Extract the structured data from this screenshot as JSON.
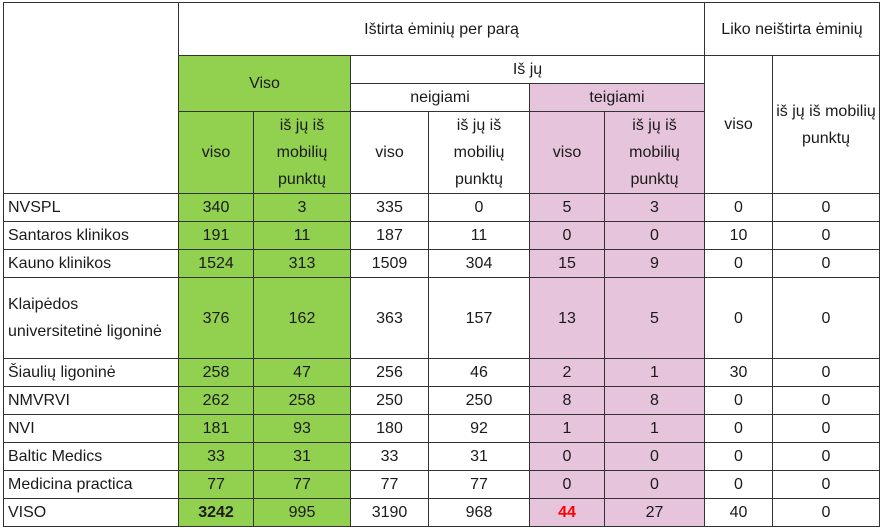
{
  "header": {
    "tested_per_day": "Ištirta ėminių per parą",
    "remaining_untested": "Liko neištirta ėminių",
    "total": "Viso",
    "of_which": "Iš jų",
    "negative": "neigiami",
    "positive": "teigiami",
    "sub_total": "viso",
    "sub_mobile": "iš jų iš mobilių punktų"
  },
  "rows": [
    {
      "name": "NVSPL",
      "cells": [
        "340",
        "3",
        "335",
        "0",
        "5",
        "3",
        "0",
        "0"
      ]
    },
    {
      "name": "Santaros klinikos",
      "cells": [
        "191",
        "11",
        "187",
        "11",
        "0",
        "0",
        "10",
        "0"
      ]
    },
    {
      "name": "Kauno klinikos",
      "cells": [
        "1524",
        "313",
        "1509",
        "304",
        "15",
        "9",
        "0",
        "0"
      ]
    },
    {
      "name": "Klaipėdos universitetinė ligoninė",
      "cells": [
        "376",
        "162",
        "363",
        "157",
        "13",
        "5",
        "0",
        "0"
      ]
    },
    {
      "name": "Šiaulių ligoninė",
      "cells": [
        "258",
        "47",
        "256",
        "46",
        "2",
        "1",
        "30",
        "0"
      ]
    },
    {
      "name": "NMVRVI",
      "cells": [
        "262",
        "258",
        "250",
        "250",
        "8",
        "8",
        "0",
        "0"
      ]
    },
    {
      "name": "NVI",
      "cells": [
        "181",
        "93",
        "180",
        "92",
        "1",
        "1",
        "0",
        "0"
      ]
    },
    {
      "name": "Baltic Medics",
      "cells": [
        "33",
        "31",
        "33",
        "31",
        "0",
        "0",
        "0",
        "0"
      ]
    },
    {
      "name": "Medicina practica",
      "cells": [
        "77",
        "77",
        "77",
        "77",
        "0",
        "0",
        "0",
        "0"
      ]
    },
    {
      "name": "VISO",
      "cells": [
        "3242",
        "995",
        "3190",
        "968",
        "44",
        "27",
        "40",
        "0"
      ]
    }
  ],
  "colors": {
    "total_bg": "#92d050",
    "positive_bg": "#e6c4db",
    "highlight_text": "#ff0000"
  }
}
